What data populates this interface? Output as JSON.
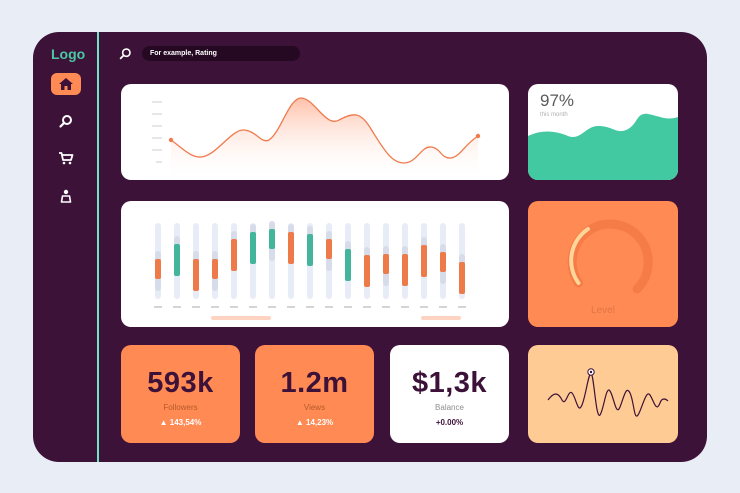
{
  "app": {
    "logo": "Logo"
  },
  "search": {
    "placeholder": "For example, Rating"
  },
  "sidebar": {
    "items": [
      {
        "name": "home",
        "icon": "home-icon",
        "active": true
      },
      {
        "name": "search",
        "icon": "search-icon",
        "active": false
      },
      {
        "name": "cart",
        "icon": "cart-icon",
        "active": false
      },
      {
        "name": "profile",
        "icon": "user-icon",
        "active": false
      }
    ]
  },
  "widgets": {
    "progress": {
      "value": "97%",
      "subtitle": "this month"
    },
    "level": {
      "label": "Level"
    },
    "followers": {
      "value": "593k",
      "label": "Followers",
      "change": "▲ 143,54%"
    },
    "views": {
      "value": "1.2m",
      "label": "Views",
      "change": "▲ 14,23%"
    },
    "balance": {
      "value": "$1,3k",
      "label": "Balance",
      "change": "+0.00%"
    }
  },
  "colors": {
    "background": "#e9eef6",
    "frame": "#3d1238",
    "accent_orange": "#ff8a54",
    "accent_green": "#43c9a1",
    "peach": "#ffcb94"
  }
}
